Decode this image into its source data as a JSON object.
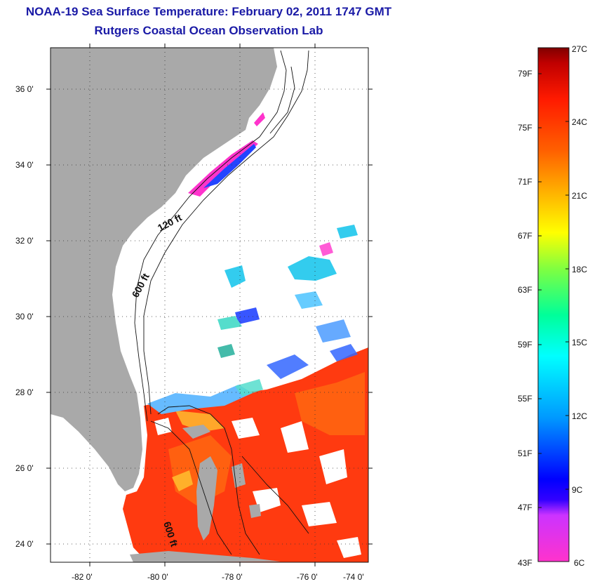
{
  "header": {
    "title": "NOAA-19 Sea Surface Temperature:  February 02, 2011 1747 GMT",
    "subtitle": "Rutgers Coastal Ocean Observation Lab"
  },
  "map": {
    "lat_ticks": [
      "36 0'",
      "34 0'",
      "32 0'",
      "30 0'",
      "28 0'",
      "26 0'",
      "24 0'"
    ],
    "lon_ticks": [
      "-82 0'",
      "-80 0'",
      "-78 0'",
      "-76 0'",
      "-74 0'"
    ],
    "contour_labels": [
      "120 ft",
      "600 ft",
      "600 ft"
    ],
    "colors": {
      "land": "#a9a9a9",
      "cold_bands": [
        "#ff33cc",
        "#2244ff",
        "#33ccee"
      ],
      "warm_bands": [
        "#ff2a00",
        "#ff5a00",
        "#ff8c1a"
      ]
    }
  },
  "colorbar": {
    "fahrenheit": [
      "79F",
      "75F",
      "71F",
      "67F",
      "63F",
      "59F",
      "55F",
      "51F",
      "47F",
      "43F"
    ],
    "celsius": [
      "27C",
      "24C",
      "21C",
      "18C",
      "15C",
      "12C",
      "9C",
      "6C"
    ],
    "scale_colors": [
      "#800000",
      "#d40000",
      "#ff3000",
      "#ff8000",
      "#ffd000",
      "#ffff00",
      "#80ff40",
      "#00ff99",
      "#00ffff",
      "#0099ff",
      "#0033ff",
      "#0000ff",
      "#8040ff",
      "#ff00ff",
      "#ff33cc"
    ]
  }
}
